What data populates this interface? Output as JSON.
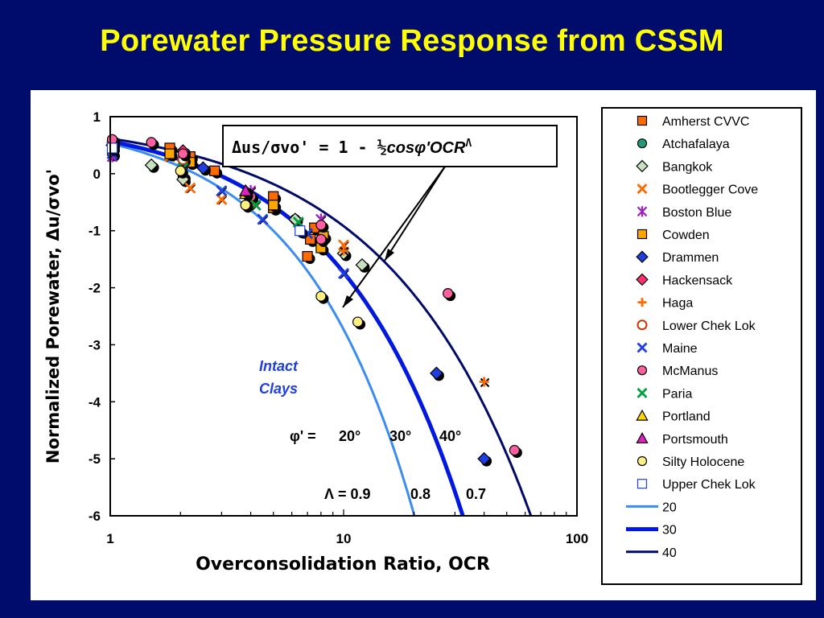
{
  "slide": {
    "title": "Porewater Pressure Response from CSSM"
  },
  "chart_data": {
    "type": "scatter",
    "xlabel": "Overconsolidation Ratio, OCR",
    "ylabel": "Normalized Porewater, Δu/σvo'",
    "x_scale": "log",
    "xlim": [
      1,
      100
    ],
    "ylim": [
      -6,
      1
    ],
    "x_ticks": [
      "1",
      "10",
      "100"
    ],
    "y_ticks": [
      "1",
      "0",
      "-1",
      "-2",
      "-3",
      "-4",
      "-5",
      "-6"
    ],
    "equation": {
      "lhs": "Δus/σvo' = 1 - ½",
      "rhs": "cosφ'OCR",
      "superscript": "Λ"
    },
    "annotations": {
      "intact_clays": [
        "Intact",
        "Clays"
      ],
      "phi_row": {
        "label": "φ' =",
        "values": [
          "20°",
          "30°",
          "40°"
        ]
      },
      "lambda_row": {
        "label": "Λ = 0.9",
        "values": [
          "0.8",
          "0.7"
        ]
      }
    },
    "legend_position": "right",
    "series": [
      {
        "name": "Amherst CVVC",
        "marker": "square",
        "color": "#ff6a00",
        "points": [
          [
            1.8,
            0.45
          ],
          [
            2.2,
            0.3
          ],
          [
            2.8,
            0.05
          ],
          [
            5,
            -0.4
          ],
          [
            5,
            -0.6
          ],
          [
            7,
            -1.45
          ],
          [
            7.2,
            -1.15
          ],
          [
            7.5,
            -0.95
          ]
        ]
      },
      {
        "name": "Atchafalaya",
        "marker": "circle",
        "color": "#1f9a7a",
        "points": [
          [
            1.02,
            0.35
          ],
          [
            2.05,
            -0.05
          ],
          [
            6.2,
            -0.8
          ]
        ]
      },
      {
        "name": "Bangkok",
        "marker": "diamond",
        "color": "#c8e0c0",
        "points": [
          [
            1.5,
            0.15
          ],
          [
            2.05,
            -0.1
          ],
          [
            6.2,
            -0.8
          ],
          [
            10,
            -1.4
          ],
          [
            12,
            -1.6
          ]
        ]
      },
      {
        "name": "Bootlegger Cove",
        "marker": "x",
        "color": "#ff6a00",
        "points": [
          [
            1.8,
            0.3
          ],
          [
            2.2,
            -0.25
          ],
          [
            3,
            -0.45
          ],
          [
            4,
            -0.5
          ],
          [
            5,
            -0.55
          ],
          [
            10,
            -1.25
          ]
        ]
      },
      {
        "name": "Boston Blue",
        "marker": "star",
        "color": "#a020c0",
        "points": [
          [
            1.02,
            0.3
          ],
          [
            2.05,
            0.05
          ],
          [
            4,
            -0.3
          ],
          [
            8,
            -0.8
          ]
        ]
      },
      {
        "name": "Cowden",
        "marker": "square",
        "color": "#ffa500",
        "points": [
          [
            1.8,
            0.35
          ],
          [
            2.2,
            0.2
          ],
          [
            5,
            -0.55
          ],
          [
            8,
            -1.3
          ],
          [
            8.2,
            -1.1
          ]
        ]
      },
      {
        "name": "Drammen",
        "marker": "diamond",
        "color": "#1f3fe0",
        "points": [
          [
            2.5,
            0.1
          ],
          [
            25,
            -3.5
          ],
          [
            40,
            -5
          ]
        ]
      },
      {
        "name": "Hackensack",
        "marker": "diamond",
        "color": "#ff3070",
        "points": [
          [
            1.02,
            0.5
          ],
          [
            2.05,
            0.4
          ],
          [
            4,
            -0.4
          ]
        ]
      },
      {
        "name": "Haga",
        "marker": "plus",
        "color": "#ff6a00",
        "points": [
          [
            10,
            -1.35
          ],
          [
            40,
            -3.65
          ]
        ]
      },
      {
        "name": "Lower Chek Lok",
        "marker": "ring",
        "color": "#cc3300",
        "points": [
          [
            1.02,
            0.55
          ],
          [
            2.05,
            0.25
          ]
        ]
      },
      {
        "name": "Maine",
        "marker": "x",
        "color": "#1f3fe0",
        "points": [
          [
            1.02,
            0.35
          ],
          [
            3,
            -0.3
          ],
          [
            4.5,
            -0.8
          ],
          [
            7,
            -1.05
          ],
          [
            10,
            -1.75
          ]
        ]
      },
      {
        "name": "McManus",
        "marker": "circle",
        "color": "#ff5fa0",
        "points": [
          [
            1.02,
            0.6
          ],
          [
            1.5,
            0.55
          ],
          [
            2.05,
            0.35
          ],
          [
            4,
            -0.4
          ],
          [
            8,
            -0.9
          ],
          [
            8,
            -1.15
          ],
          [
            28,
            -2.1
          ],
          [
            54,
            -4.85
          ]
        ]
      },
      {
        "name": "Paria",
        "marker": "x",
        "color": "#00a040",
        "points": [
          [
            1.02,
            0.45
          ],
          [
            2.05,
            0.1
          ],
          [
            4.2,
            -0.55
          ],
          [
            6.4,
            -0.85
          ]
        ]
      },
      {
        "name": "Portland",
        "marker": "triangle",
        "color": "#ffd700",
        "points": [
          [
            3.8,
            -0.35
          ]
        ]
      },
      {
        "name": "Portsmouth",
        "marker": "triangle",
        "color": "#e020c0",
        "points": [
          [
            3.8,
            -0.3
          ]
        ]
      },
      {
        "name": "Silty Holocene",
        "marker": "circle",
        "color": "#ffee80",
        "points": [
          [
            2,
            0.05
          ],
          [
            3.8,
            -0.55
          ],
          [
            8,
            -2.15
          ],
          [
            11.5,
            -2.6
          ]
        ]
      },
      {
        "name": "Upper Chek Lok",
        "marker": "square",
        "color": "#ffffff",
        "stroke": "#1f3fe0",
        "points": [
          [
            1.02,
            0.45
          ],
          [
            6.5,
            -1.0
          ]
        ]
      },
      {
        "name": "20",
        "type": "line",
        "color": "#3a8cf0",
        "width": 3,
        "phi": 20,
        "lambda": 0.9
      },
      {
        "name": "30",
        "type": "line",
        "color": "#0018e0",
        "width": 5,
        "phi": 30,
        "lambda": 0.8
      },
      {
        "name": "40",
        "type": "line",
        "color": "#000a6b",
        "width": 3,
        "phi": 40,
        "lambda": 0.7
      }
    ]
  }
}
